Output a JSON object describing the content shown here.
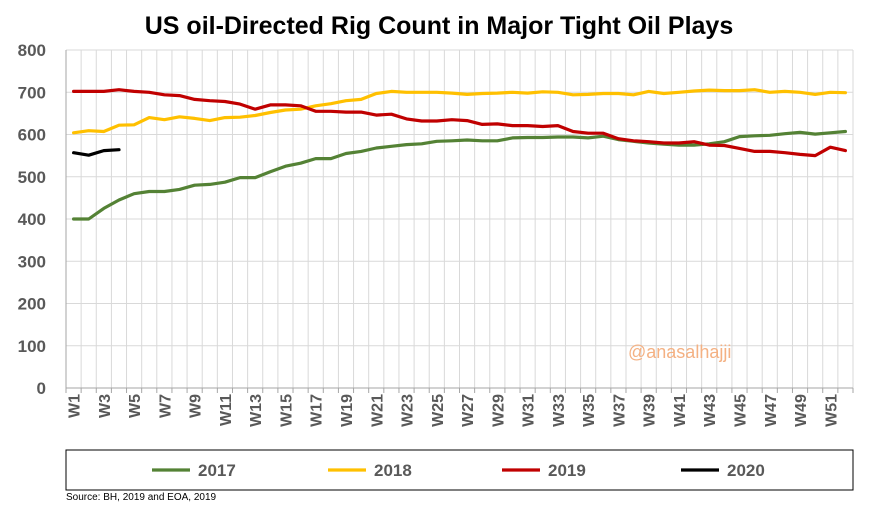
{
  "chart_data": {
    "type": "line",
    "title": "US oil-Directed Rig Count in Major Tight Oil Plays",
    "ylim": [
      0,
      800
    ],
    "yticks": [
      0,
      100,
      200,
      300,
      400,
      500,
      600,
      700,
      800
    ],
    "xticks": [
      "W1",
      "W3",
      "W5",
      "W7",
      "W9",
      "W11",
      "W13",
      "W15",
      "W17",
      "W19",
      "W21",
      "W23",
      "W25",
      "W27",
      "W29",
      "W31",
      "W33",
      "W35",
      "W37",
      "W39",
      "W41",
      "W43",
      "W45",
      "W47",
      "W49",
      "W51"
    ],
    "weeks": 52,
    "grid": true,
    "legend_position": "bottom",
    "watermark": "@anasalhajji",
    "source": "Source: BH, 2019 and EOA, 2019",
    "series": [
      {
        "name": "2017",
        "color": "#548235",
        "values": [
          400,
          400,
          425,
          445,
          460,
          465,
          465,
          470,
          480,
          482,
          487,
          498,
          498,
          512,
          525,
          532,
          543,
          543,
          555,
          560,
          568,
          572,
          576,
          578,
          584,
          585,
          587,
          585,
          585,
          592,
          593,
          593,
          594,
          594,
          592,
          596,
          588,
          584,
          580,
          577,
          575,
          575,
          578,
          583,
          595,
          597,
          598,
          602,
          605,
          601,
          604,
          607
        ]
      },
      {
        "name": "2018",
        "color": "#ffc000",
        "values": [
          604,
          609,
          607,
          622,
          623,
          640,
          635,
          642,
          638,
          633,
          640,
          641,
          645,
          652,
          658,
          660,
          668,
          673,
          680,
          683,
          697,
          702,
          700,
          700,
          700,
          698,
          695,
          697,
          698,
          700,
          698,
          701,
          700,
          694,
          695,
          697,
          697,
          694,
          702,
          697,
          700,
          703,
          705,
          704,
          704,
          706,
          700,
          702,
          700,
          695,
          700,
          699
        ]
      },
      {
        "name": "2019",
        "color": "#c00000",
        "values": [
          702,
          702,
          702,
          706,
          702,
          700,
          694,
          692,
          683,
          680,
          678,
          672,
          660,
          670,
          670,
          668,
          655,
          655,
          653,
          653,
          646,
          648,
          637,
          632,
          632,
          635,
          633,
          624,
          625,
          621,
          621,
          619,
          621,
          607,
          603,
          603,
          590,
          585,
          583,
          580,
          580,
          583,
          575,
          574,
          567,
          560,
          560,
          557,
          553,
          550,
          570,
          562
        ]
      },
      {
        "name": "2020",
        "color": "#000000",
        "values": [
          557,
          551,
          562,
          564
        ]
      }
    ]
  }
}
